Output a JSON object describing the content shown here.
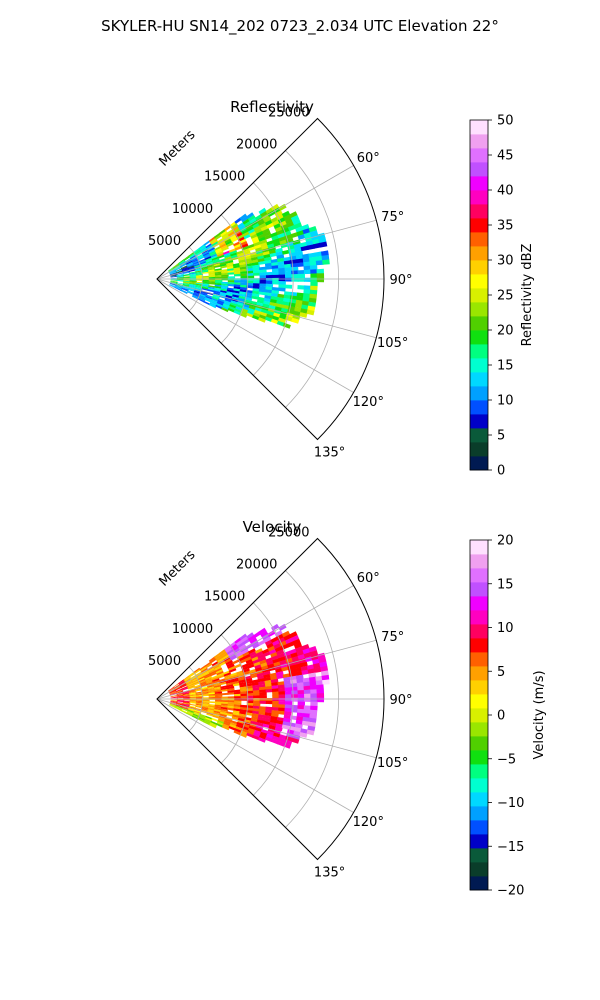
{
  "figure_title": "SKYLER-HU  SN14_202  0723_2.034 UTC Elevation 22°",
  "chart_data": [
    {
      "type": "polar-sector",
      "title": "Reflectivity",
      "range_label": "Meters",
      "range_ticks": [
        "5000",
        "10000",
        "15000",
        "20000",
        "25000"
      ],
      "range_tick_values": [
        5000,
        10000,
        15000,
        20000,
        25000
      ],
      "rmax": 25000,
      "theta_range_deg": [
        45,
        135
      ],
      "theta_ticks": [
        "60°",
        "75°",
        "90°",
        "105°",
        "120°",
        "135°"
      ],
      "theta_tick_values": [
        60,
        75,
        90,
        105,
        120,
        135
      ],
      "grid": true,
      "colorbar": {
        "label": "Reflectivity dBZ",
        "vmin": 0,
        "vmax": 50,
        "ticks": [
          "0",
          "5",
          "10",
          "15",
          "20",
          "25",
          "30",
          "35",
          "40",
          "45",
          "50"
        ],
        "colors": [
          "#001a52",
          "#0a3d2a",
          "#0a5a3a",
          "#0000c8",
          "#0050ff",
          "#00a0ff",
          "#00d8ff",
          "#00ffd0",
          "#00ff80",
          "#10e010",
          "#50d000",
          "#9ae600",
          "#d8f000",
          "#ffff00",
          "#ffd000",
          "#ffa000",
          "#ff6000",
          "#ff0000",
          "#ff0060",
          "#ff00c0",
          "#f000ff",
          "#c050ff",
          "#e070ff",
          "#f0a0f0",
          "#ffe0ff"
        ]
      },
      "field_summary": "echo sector 55°–115°, dominant values 15–25 dBZ, core up to ~38 dBZ near 65°"
    },
    {
      "type": "polar-sector",
      "title": "Velocity",
      "range_label": "Meters",
      "range_ticks": [
        "5000",
        "10000",
        "15000",
        "20000",
        "25000"
      ],
      "range_tick_values": [
        5000,
        10000,
        15000,
        20000,
        25000
      ],
      "rmax": 25000,
      "theta_range_deg": [
        45,
        135
      ],
      "theta_ticks": [
        "60°",
        "75°",
        "90°",
        "105°",
        "120°",
        "135°"
      ],
      "theta_tick_values": [
        60,
        75,
        90,
        105,
        120,
        135
      ],
      "grid": true,
      "colorbar": {
        "label": "Velocity (m/s)",
        "vmin": -20,
        "vmax": 20,
        "ticks": [
          "−20",
          "−15",
          "−10",
          "−5",
          "0",
          "5",
          "10",
          "15",
          "20"
        ],
        "colors": [
          "#001a52",
          "#0a3d2a",
          "#0a5a3a",
          "#0000c8",
          "#0050ff",
          "#00a0ff",
          "#00d8ff",
          "#00ffd0",
          "#00ff80",
          "#10e010",
          "#50d000",
          "#9ae600",
          "#d8f000",
          "#ffff00",
          "#ffd000",
          "#ffa000",
          "#ff6000",
          "#ff0000",
          "#ff0060",
          "#ff00c0",
          "#f000ff",
          "#c050ff",
          "#e070ff",
          "#f0a0f0",
          "#ffe0ff"
        ]
      },
      "field_summary": "inner region ~0–5 m/s, outer region ~10–15 m/s"
    }
  ]
}
